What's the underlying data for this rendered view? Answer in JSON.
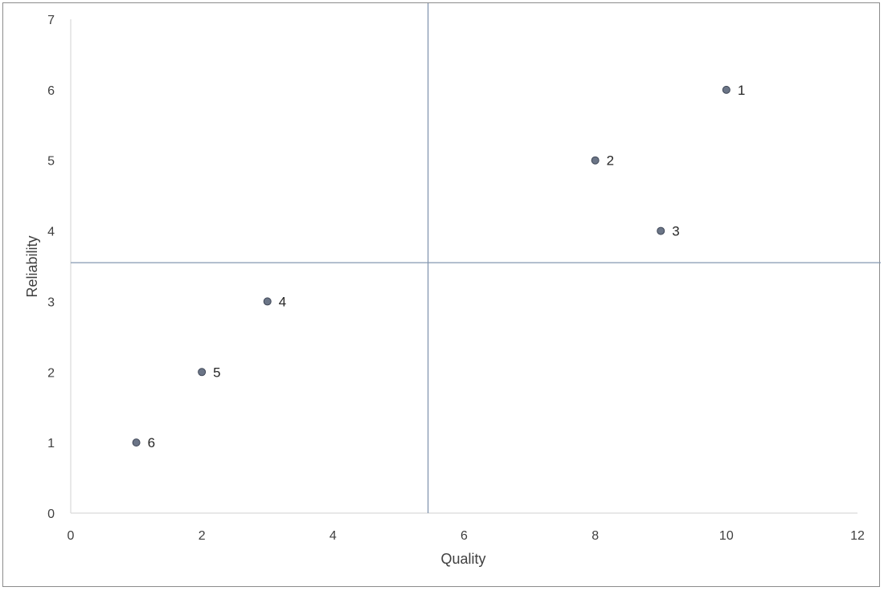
{
  "chart_data": {
    "type": "scatter",
    "title": "",
    "xlabel": "Quality",
    "ylabel": "Reliability",
    "xlim": [
      0,
      12
    ],
    "ylim": [
      0,
      7
    ],
    "x_ticks": [
      0,
      2,
      4,
      6,
      8,
      10,
      12
    ],
    "y_ticks": [
      0,
      1,
      2,
      3,
      4,
      5,
      6,
      7
    ],
    "grid": false,
    "legend": "none",
    "points": [
      {
        "label": "1",
        "x": 10,
        "y": 6
      },
      {
        "label": "2",
        "x": 8,
        "y": 5
      },
      {
        "label": "3",
        "x": 9,
        "y": 4
      },
      {
        "label": "4",
        "x": 3,
        "y": 3
      },
      {
        "label": "5",
        "x": 2,
        "y": 2
      },
      {
        "label": "6",
        "x": 1,
        "y": 1
      }
    ],
    "reference_lines": {
      "x": 5.45,
      "y": 3.55
    },
    "colors": {
      "marker": "#6b7587",
      "marker_edge": "#3f4757",
      "reference_line": "#8497b0",
      "axis_line": "#d9d9d9",
      "text": "#404040"
    }
  }
}
